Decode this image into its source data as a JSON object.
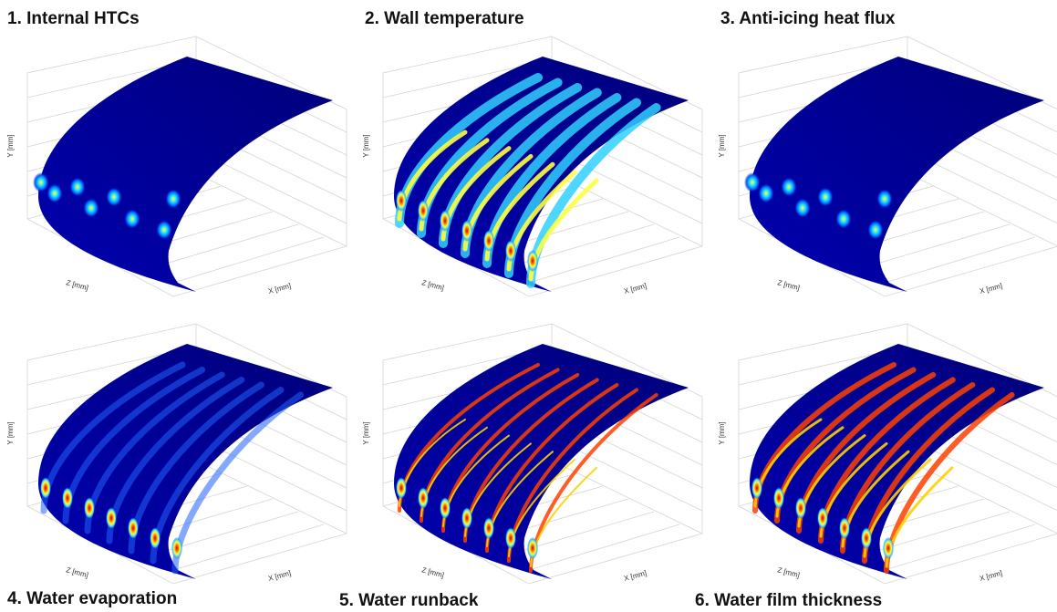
{
  "panels": [
    {
      "title": "1. Internal HTCs",
      "x_label": "X [mm]",
      "y_label": "Y [mm]",
      "z_label": "Z [mm]"
    },
    {
      "title": "2. Wall temperature",
      "x_label": "X [mm]",
      "y_label": "Y [mm]",
      "z_label": "Z [mm]"
    },
    {
      "title": "3. Anti-icing heat flux",
      "x_label": "X [mm]",
      "y_label": "Y [mm]",
      "z_label": "Z [mm]"
    },
    {
      "title": "4. Water evaporation",
      "x_label": "X [mm]",
      "y_label": "Y [mm]",
      "z_label": "Z [mm]"
    },
    {
      "title": "5. Water runback",
      "x_label": "X [mm]",
      "y_label": "Y [mm]",
      "z_label": "Z [mm]"
    },
    {
      "title": "6. Water film thickness",
      "x_label": "X [mm]",
      "y_label": "Y [mm]",
      "z_label": "Z [mm]"
    }
  ]
}
